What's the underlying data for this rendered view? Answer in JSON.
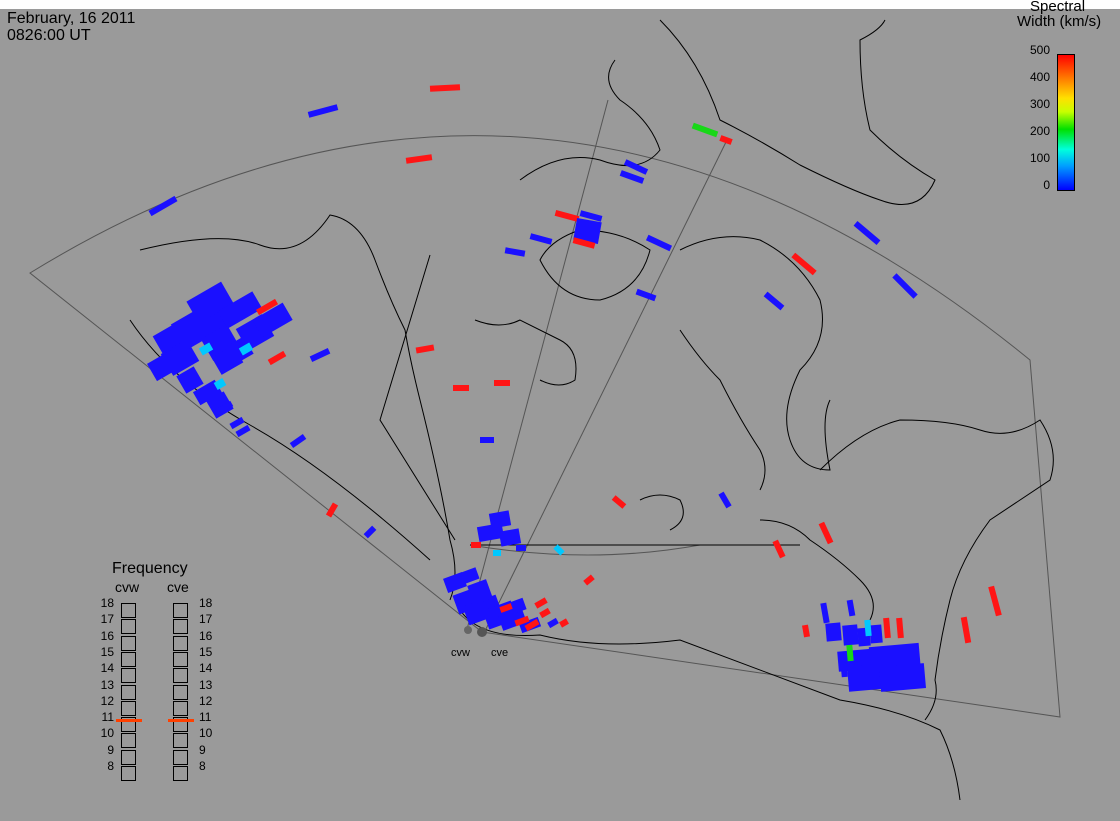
{
  "header": {
    "date": "February, 16 2011",
    "time": "0826:00 UT"
  },
  "colorbar": {
    "title_line1": "Spectral",
    "title_line2": "Width (km/s)",
    "ticks": [
      "500",
      "400",
      "300",
      "200",
      "100",
      "0"
    ],
    "colors": [
      "#0000ff",
      "#00ffdd",
      "#00e000",
      "#ffe000",
      "#ff8000",
      "#ff0000"
    ]
  },
  "frequency": {
    "title": "Frequency",
    "radars": [
      "cvw",
      "cve"
    ],
    "ticks": [
      "18",
      "17",
      "16",
      "15",
      "14",
      "13",
      "12",
      "11",
      "10",
      "9",
      "8"
    ],
    "current_mhz": [
      10.9,
      10.9
    ]
  },
  "radars": [
    {
      "name": "cvw"
    },
    {
      "name": "cve"
    }
  ],
  "map": {
    "background": "#9a9a9a",
    "coast_color": "#000000",
    "fov_color": "#555555"
  }
}
